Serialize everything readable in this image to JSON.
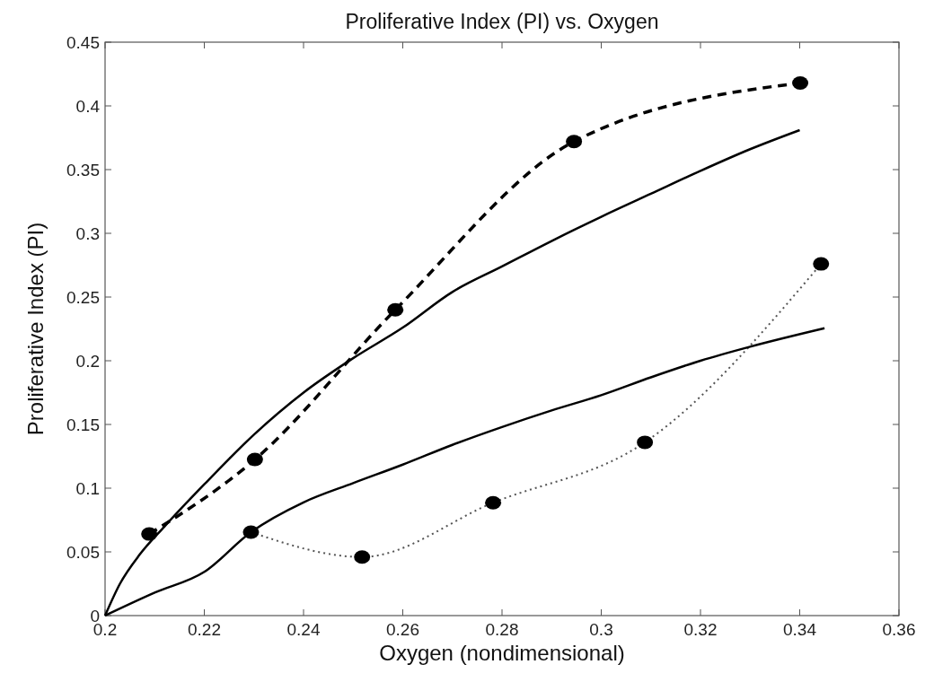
{
  "chart_data": {
    "type": "line",
    "title": "Proliferative Index (PI) vs. Oxygen",
    "xlabel": "Oxygen (nondimensional)",
    "ylabel": "Proliferative Index (PI)",
    "xlim": [
      0.2,
      0.36
    ],
    "xticks": [
      0.2,
      0.22,
      0.24,
      0.26,
      0.28,
      0.3,
      0.32,
      0.34,
      0.36
    ],
    "ylim": [
      0,
      0.45
    ],
    "yticks": [
      0,
      0.05,
      0.1,
      0.15,
      0.2,
      0.25,
      0.3,
      0.35,
      0.4,
      0.45
    ],
    "grid": false,
    "series": [
      {
        "color": "#000000",
        "line_style": "dashed",
        "marker": "circle",
        "x": [
          0.2089,
          0.2302,
          0.2585,
          0.2945,
          0.3401
        ],
        "values": [
          0.064,
          0.1225,
          0.24,
          0.372,
          0.418
        ]
      },
      {
        "color": "#555555",
        "line_style": "dotted",
        "marker": "circle",
        "x": [
          0.2294,
          0.2518,
          0.2782,
          0.3088,
          0.3443
        ],
        "values": [
          0.0655,
          0.046,
          0.0886,
          0.136,
          0.276
        ]
      },
      {
        "color": "#000000",
        "line_style": "solid",
        "marker": "none",
        "x": [
          0.2,
          0.203,
          0.207,
          0.212,
          0.22,
          0.23,
          0.24,
          0.25,
          0.26,
          0.27,
          0.28,
          0.29,
          0.3,
          0.31,
          0.32,
          0.33,
          0.34
        ],
        "values": [
          0,
          0.025,
          0.048,
          0.07,
          0.103,
          0.142,
          0.175,
          0.202,
          0.226,
          0.254,
          0.274,
          0.294,
          0.313,
          0.331,
          0.349,
          0.366,
          0.381
        ]
      },
      {
        "color": "#000000",
        "line_style": "solid",
        "marker": "none",
        "x": [
          0.2,
          0.21,
          0.22,
          0.2294,
          0.24,
          0.25,
          0.26,
          0.27,
          0.28,
          0.29,
          0.3,
          0.31,
          0.32,
          0.33,
          0.345
        ],
        "values": [
          0,
          0.018,
          0.0343,
          0.0655,
          0.0889,
          0.104,
          0.1185,
          0.134,
          0.148,
          0.161,
          0.173,
          0.187,
          0.2,
          0.211,
          0.2255
        ]
      }
    ]
  }
}
